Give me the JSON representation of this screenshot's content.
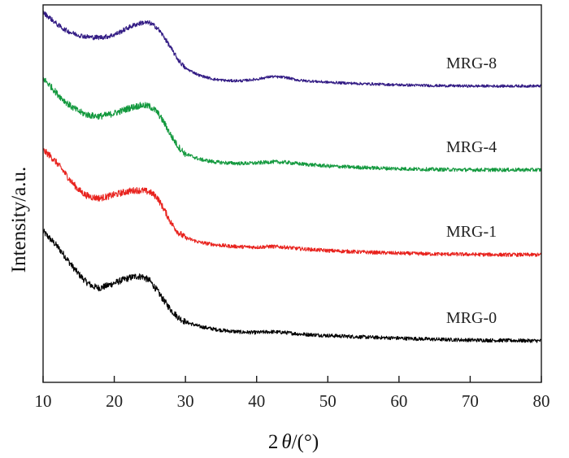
{
  "chart_data": {
    "type": "line",
    "title": "",
    "xlabel_prefix": "2",
    "xlabel_symbol": "θ",
    "xlabel_suffix": "/(°)",
    "ylabel": "Intensity/a.u.",
    "xlim": [
      10,
      80
    ],
    "ylim": [
      0,
      100
    ],
    "x_ticks": [
      10,
      20,
      30,
      40,
      50,
      60,
      70,
      80
    ],
    "x_tick_labels": [
      "10",
      "20",
      "30",
      "40",
      "50",
      "60",
      "70",
      "80"
    ],
    "y_ticks_shown": false,
    "legend": "inline labels to the right of each curve",
    "series": [
      {
        "name": "MRG-0",
        "color": "#000000",
        "noise": 0.55,
        "x": [
          10,
          11,
          12,
          13,
          14,
          15,
          16,
          17,
          18,
          19,
          20,
          21,
          22,
          23,
          24,
          25,
          26,
          27,
          28,
          29,
          30,
          32,
          34,
          36,
          38,
          40,
          42,
          44,
          46,
          50,
          55,
          60,
          65,
          70,
          75,
          80
        ],
        "y": [
          40.0,
          38.0,
          36.0,
          33.6,
          31.0,
          28.7,
          26.7,
          25.4,
          25.0,
          25.6,
          26.3,
          27.0,
          27.6,
          28.1,
          28.0,
          26.9,
          24.4,
          21.6,
          19.1,
          17.2,
          16.0,
          14.8,
          14.1,
          13.6,
          13.3,
          13.2,
          13.4,
          13.2,
          12.8,
          12.4,
          12.0,
          11.7,
          11.4,
          11.2,
          11.1,
          11.0
        ]
      },
      {
        "name": "MRG-1",
        "color": "#e8221d",
        "noise": 0.55,
        "x": [
          10,
          11,
          12,
          13,
          14,
          15,
          16,
          17,
          18,
          19,
          20,
          21,
          22,
          23,
          24,
          25,
          26,
          27,
          28,
          29,
          30,
          32,
          34,
          36,
          38,
          40,
          42,
          44,
          46,
          50,
          55,
          60,
          65,
          70,
          75,
          80
        ],
        "y": [
          61.5,
          60.0,
          58.0,
          55.6,
          53.1,
          51.0,
          49.6,
          49.0,
          48.8,
          49.2,
          49.7,
          50.2,
          50.6,
          50.9,
          50.8,
          50.4,
          49.1,
          45.8,
          42.2,
          39.7,
          38.3,
          37.1,
          36.5,
          36.1,
          35.9,
          35.8,
          36.0,
          35.8,
          35.4,
          34.9,
          34.5,
          34.2,
          34.0,
          33.9,
          33.8,
          33.8
        ]
      },
      {
        "name": "MRG-4",
        "color": "#13993e",
        "noise": 0.55,
        "x": [
          10,
          11,
          12,
          13,
          14,
          15,
          16,
          17,
          18,
          19,
          20,
          21,
          22,
          23,
          24,
          25,
          26,
          27,
          28,
          29,
          30,
          32,
          34,
          36,
          38,
          40,
          42,
          44,
          46,
          50,
          55,
          60,
          65,
          70,
          75,
          80
        ],
        "y": [
          80.5,
          78.6,
          76.4,
          74.6,
          73.0,
          71.8,
          71.0,
          70.6,
          70.5,
          70.8,
          71.3,
          71.9,
          72.6,
          73.1,
          73.4,
          73.1,
          71.7,
          68.8,
          65.3,
          62.4,
          60.5,
          59.1,
          58.4,
          58.1,
          58.0,
          58.1,
          58.4,
          58.3,
          57.9,
          57.3,
          56.9,
          56.6,
          56.4,
          56.3,
          56.3,
          56.3
        ]
      },
      {
        "name": "MRG-8",
        "color": "#321b84",
        "noise": 0.4,
        "x": [
          10,
          11,
          12,
          13,
          14,
          15,
          16,
          17,
          18,
          19,
          20,
          21,
          22,
          23,
          24,
          25,
          26,
          27,
          28,
          29,
          30,
          32,
          34,
          36,
          38,
          40,
          42,
          44,
          46,
          50,
          55,
          60,
          65,
          70,
          75,
          80
        ],
        "y": [
          98.0,
          96.5,
          94.8,
          93.5,
          92.6,
          92.0,
          91.6,
          91.4,
          91.4,
          91.6,
          92.1,
          93.0,
          94.0,
          94.8,
          95.3,
          95.2,
          94.0,
          91.5,
          88.4,
          85.4,
          83.2,
          81.3,
          80.3,
          79.9,
          79.9,
          80.3,
          81.0,
          80.8,
          80.0,
          79.5,
          79.1,
          78.8,
          78.6,
          78.5,
          78.5,
          78.5
        ]
      }
    ]
  }
}
